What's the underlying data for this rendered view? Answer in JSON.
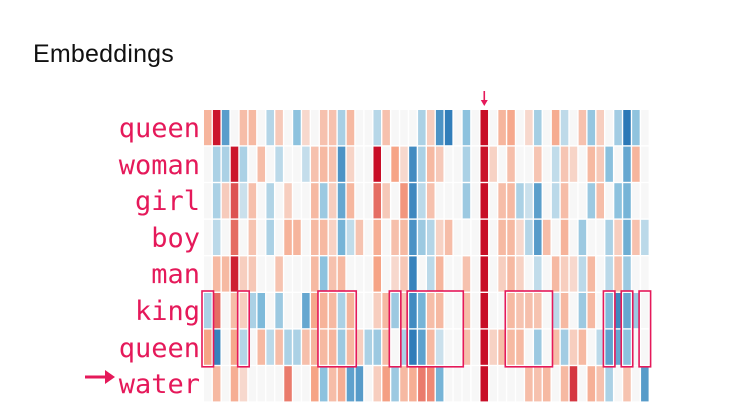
{
  "title": "Embeddings",
  "rows": [
    {
      "word": "queen",
      "values": [
        0.32,
        0.92,
        -0.63,
        0,
        0.28,
        0.3,
        0,
        -0.22,
        0.22,
        0,
        -0.35,
        0.15,
        0,
        0.26,
        0.26,
        -0.26,
        0.3,
        0,
        0,
        -0.21,
        0.26,
        0,
        0,
        0,
        -0.25,
        0.2,
        -0.71,
        -0.88,
        0,
        -0.35,
        0,
        0.95,
        0,
        0.32,
        0.38,
        0,
        0.15,
        -0.27,
        0,
        0.36,
        -0.19,
        0,
        0.26,
        -0.32,
        0.2,
        0,
        -0.28,
        -0.93,
        -0.34,
        0
      ]
    },
    {
      "word": "woman",
      "values": [
        0,
        -0.25,
        -0.25,
        0.92,
        -0.25,
        0,
        0.28,
        0,
        -0.2,
        0,
        0,
        -0.17,
        0.26,
        0.3,
        0.26,
        -0.71,
        0.17,
        0,
        0,
        0.95,
        0,
        0.4,
        0.15,
        -0.78,
        -0.25,
        0.3,
        0.22,
        0,
        0,
        -0.25,
        0,
        0.93,
        0.18,
        0,
        0.27,
        0,
        0,
        0.24,
        0,
        -0.18,
        0.24,
        0.17,
        0,
        0.3,
        0.22,
        -0.36,
        0,
        -0.55,
        0.32,
        0
      ]
    },
    {
      "word": "girl",
      "values": [
        0,
        -0.25,
        0.21,
        0.7,
        -0.15,
        0.27,
        0,
        -0.23,
        0,
        0.2,
        0,
        0,
        0.3,
        -0.3,
        0.2,
        -0.55,
        0.31,
        0,
        0,
        0.6,
        0.22,
        0,
        0.45,
        -0.8,
        -0.2,
        0.26,
        0,
        0,
        0,
        -0.3,
        0,
        0.95,
        0,
        0.28,
        0.3,
        -0.25,
        -0.15,
        -0.62,
        0,
        -0.2,
        0.28,
        0,
        0,
        -0.3,
        0.28,
        0,
        -0.35,
        -0.45,
        0,
        0
      ]
    },
    {
      "word": "boy",
      "values": [
        0,
        -0.2,
        0,
        0.6,
        0,
        0.25,
        0,
        -0.25,
        0,
        0.33,
        0.32,
        0,
        0.3,
        0.3,
        0.18,
        -0.45,
        -0.18,
        0.25,
        0,
        0.35,
        0,
        0.27,
        0.3,
        -0.72,
        -0.3,
        -0.22,
        0.18,
        0.28,
        0,
        0,
        0,
        0.95,
        0,
        0.3,
        0.3,
        0.15,
        -0.22,
        -0.65,
        0.28,
        0,
        0.33,
        0,
        -0.3,
        0,
        0,
        -0.25,
        0.2,
        -0.5,
        0.26,
        -0.2
      ]
    },
    {
      "word": "man",
      "values": [
        0,
        0.3,
        0.3,
        0.88,
        0.2,
        0.23,
        0,
        0,
        0.25,
        0,
        0,
        0,
        0.3,
        -0.35,
        0.26,
        0.3,
        0,
        0,
        0,
        0.4,
        0,
        0.15,
        0.23,
        -0.85,
        0,
        -0.2,
        0.32,
        0,
        0,
        0.26,
        0,
        0.95,
        0,
        0.2,
        0.3,
        0.18,
        0,
        -0.18,
        0,
        0.3,
        0.2,
        0.15,
        -0.2,
        0.3,
        0,
        -0.2,
        0.26,
        -0.3,
        0,
        0
      ]
    },
    {
      "word": "king",
      "values": [
        -0.25,
        0.6,
        0,
        0.28,
        0.2,
        -0.25,
        -0.4,
        0,
        -0.3,
        0,
        0,
        -0.55,
        0.38,
        0.33,
        0.3,
        -0.25,
        0.33,
        0,
        0,
        0.2,
        0.3,
        -0.3,
        0.24,
        -0.78,
        -0.45,
        0.28,
        0.3,
        0,
        0,
        0.28,
        0,
        0.95,
        0,
        0,
        0.3,
        0.25,
        0.27,
        0.25,
        0,
        -0.2,
        0.3,
        0,
        -0.3,
        0.3,
        0,
        -0.4,
        -0.8,
        -0.55,
        -0.3,
        0
      ]
    },
    {
      "word": "queen",
      "values": [
        0.4,
        -0.85,
        0,
        0.38,
        -0.22,
        0,
        0.3,
        -0.2,
        0.28,
        -0.25,
        -0.25,
        0.27,
        0.32,
        0.3,
        0.32,
        -0.3,
        0.3,
        0.2,
        -0.25,
        -0.3,
        0.28,
        0,
        -0.25,
        -0.9,
        -0.6,
        0.3,
        -0.15,
        0,
        0,
        0.27,
        0,
        0.95,
        0.18,
        0.28,
        0.3,
        0.3,
        0,
        -0.3,
        0,
        0.28,
        -0.28,
        0.2,
        0.3,
        0,
        -0.2,
        -0.6,
        -0.55,
        -0.35,
        0,
        0
      ]
    },
    {
      "word": "water",
      "values": [
        0,
        0.3,
        0,
        0.35,
        0.15,
        0,
        0,
        0,
        0,
        0.55,
        0,
        0,
        0.4,
        -0.35,
        0.28,
        0.35,
        -0.6,
        -0.65,
        0,
        0.2,
        0.42,
        -0.3,
        0.3,
        0.35,
        0.55,
        0.5,
        -0.45,
        0,
        0,
        0,
        0,
        0.95,
        0,
        0,
        0,
        0,
        0.28,
        0.26,
        0.3,
        0,
        0.3,
        0.8,
        0,
        0.34,
        0.26,
        -0.25,
        0,
        0.25,
        0,
        -0.65
      ]
    }
  ],
  "highlight_row": "king",
  "highlight_groups": [
    [
      0,
      0
    ],
    [
      4,
      4
    ],
    [
      13,
      16
    ],
    [
      21,
      21
    ],
    [
      23,
      28
    ],
    [
      34,
      38
    ],
    [
      45,
      45
    ],
    [
      47,
      47
    ],
    [
      49,
      49
    ]
  ],
  "marked_dimension": 31,
  "colors": {
    "label": "#e5195a",
    "marker": "#e5195a",
    "positive": "#c4001e",
    "negative": "#1f6fb2",
    "neutral": "#f7f7f7"
  },
  "icons": {
    "column_marker": "down-arrow-icon",
    "row_marker": "right-arrow-icon"
  }
}
